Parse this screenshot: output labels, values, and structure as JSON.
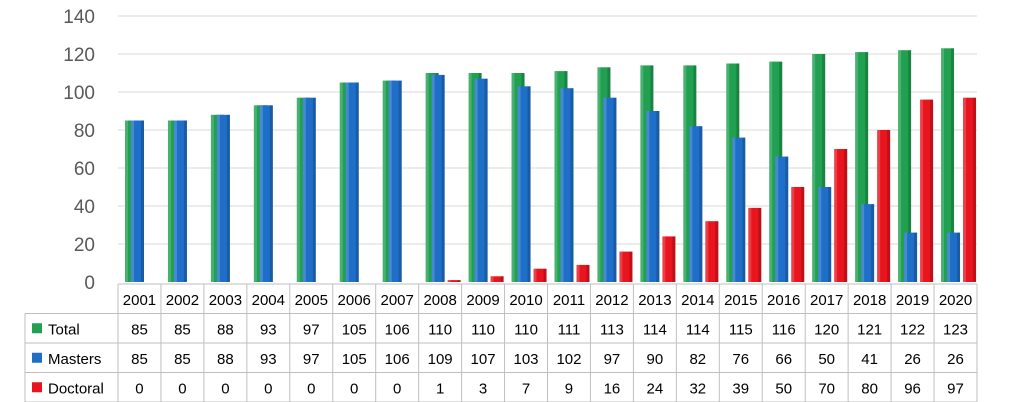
{
  "chart_data": {
    "type": "bar",
    "categories": [
      "2001",
      "2002",
      "2003",
      "2004",
      "2005",
      "2006",
      "2007",
      "2008",
      "2009",
      "2010",
      "2011",
      "2012",
      "2013",
      "2014",
      "2015",
      "2016",
      "2017",
      "2018",
      "2019",
      "2020"
    ],
    "series": [
      {
        "name": "Total",
        "color": "#20A050",
        "values": [
          85,
          85,
          88,
          93,
          97,
          105,
          106,
          110,
          110,
          110,
          111,
          113,
          114,
          114,
          115,
          116,
          120,
          121,
          122,
          123
        ]
      },
      {
        "name": "Masters",
        "color": "#1F6FC8",
        "values": [
          85,
          85,
          88,
          93,
          97,
          105,
          106,
          109,
          107,
          103,
          102,
          97,
          90,
          82,
          76,
          66,
          50,
          41,
          26,
          26
        ]
      },
      {
        "name": "Doctoral",
        "color": "#E8141E",
        "values": [
          0,
          0,
          0,
          0,
          0,
          0,
          0,
          1,
          3,
          7,
          9,
          16,
          24,
          32,
          39,
          50,
          70,
          80,
          96,
          97
        ]
      }
    ],
    "title": "",
    "xlabel": "",
    "ylabel": "",
    "ylim": [
      0,
      140
    ],
    "yticks": [
      0,
      20,
      40,
      60,
      80,
      100,
      120,
      140
    ],
    "grid": true,
    "legend": "data-table-left",
    "data_table": true
  }
}
